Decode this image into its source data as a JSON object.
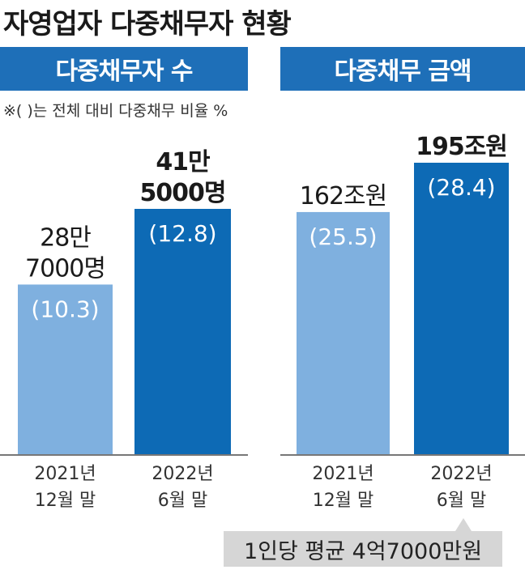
{
  "title": "자영업자 다중채무자 현황",
  "note": "※( )는 전체 대비 다중채무 비율 %",
  "callout": "1인당 평균 4억7000만원",
  "colors": {
    "header": "#1e6fb8",
    "bar_2021": "#7fb0df",
    "bar_2022": "#0d6ab5",
    "callout": "#d6d6d6"
  },
  "chart_data": [
    {
      "type": "bar",
      "title": "다중채무자 수",
      "categories": [
        "2021년 12월 말",
        "2022년 6월 말"
      ],
      "category_lines": [
        [
          "2021년",
          "12월 말"
        ],
        [
          "2022년",
          "6월 말"
        ]
      ],
      "values": [
        287000,
        415000
      ],
      "value_lines": [
        [
          "28만",
          "7000명"
        ],
        [
          "41만",
          "5000명"
        ]
      ],
      "ratio_labels": [
        "(10.3)",
        "(12.8)"
      ],
      "ratios": [
        10.3,
        12.8
      ],
      "xlabel": "",
      "ylabel": "",
      "grid": false
    },
    {
      "type": "bar",
      "title": "다중채무 금액",
      "categories": [
        "2021년 12월 말",
        "2022년 6월 말"
      ],
      "category_lines": [
        [
          "2021년",
          "12월 말"
        ],
        [
          "2022년",
          "6월 말"
        ]
      ],
      "values": [
        162,
        195
      ],
      "value_lines": [
        [
          "162조원"
        ],
        [
          "195조원"
        ]
      ],
      "ratio_labels": [
        "(25.5)",
        "(28.4)"
      ],
      "ratios": [
        25.5,
        28.4
      ],
      "unit": "조원",
      "xlabel": "",
      "ylabel": "",
      "grid": false
    }
  ]
}
